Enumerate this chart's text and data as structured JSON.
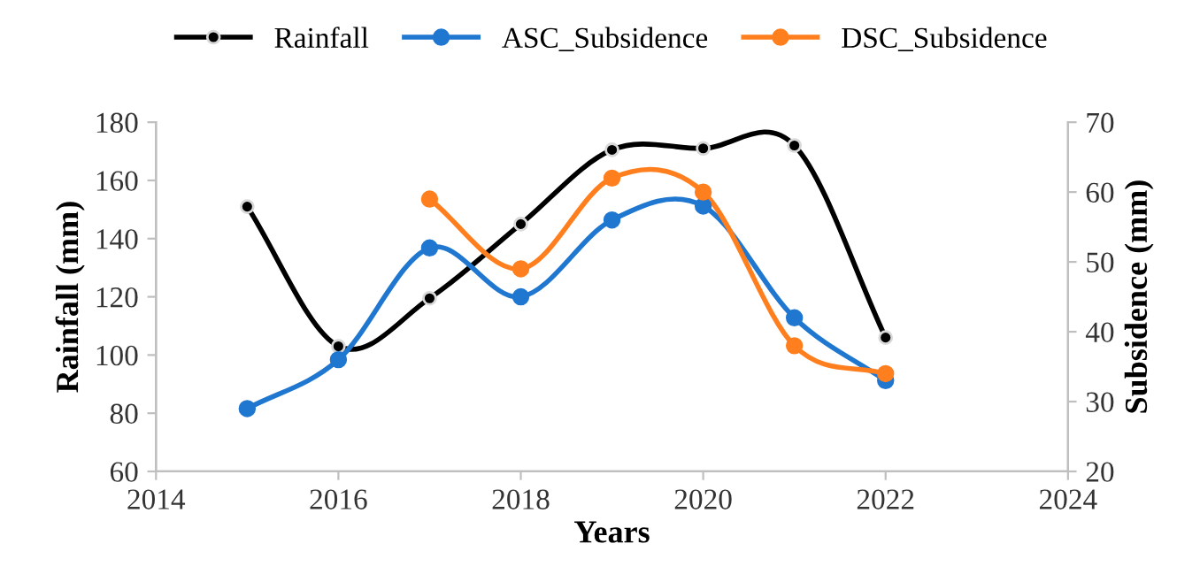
{
  "chart_data": {
    "type": "line",
    "xlabel": "Years",
    "ylabel": "Rainfall (mm)",
    "y2label": "Subsidence (mm)",
    "x": [
      2015,
      2016,
      2017,
      2018,
      2019,
      2020,
      2021,
      2022
    ],
    "series": [
      {
        "name": "Rainfall",
        "color": "#000000",
        "values": [
          151,
          103,
          119.5,
          145,
          170.5,
          171,
          172,
          106
        ]
      },
      {
        "name": "ASC_Subsidence",
        "color": "#1f77d0",
        "axis": "y2",
        "values": [
          29,
          36,
          52,
          45,
          56,
          58,
          42,
          33
        ]
      },
      {
        "name": "DSC_Subsidence",
        "color": "#ff7f1e",
        "axis": "y2",
        "values": [
          null,
          null,
          59,
          49,
          62,
          60,
          38,
          34
        ]
      }
    ],
    "xlim": [
      2014,
      2024
    ],
    "xticks": [
      2014,
      2016,
      2018,
      2020,
      2022,
      2024
    ],
    "ylim": [
      60,
      180
    ],
    "yticks": [
      60,
      80,
      100,
      120,
      140,
      160,
      180
    ],
    "y2lim": [
      20,
      70
    ],
    "y2ticks": [
      20,
      30,
      40,
      50,
      60,
      70
    ],
    "marker": "circle",
    "line_style": "solid",
    "grid": false,
    "legend": "top"
  }
}
